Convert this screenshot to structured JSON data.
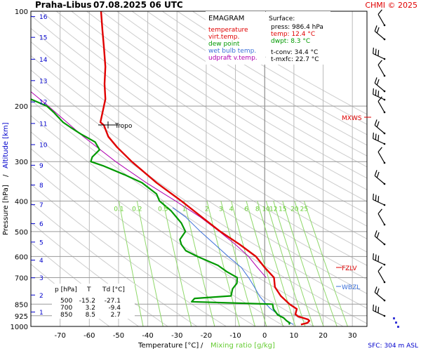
{
  "header": {
    "station": "Praha-Libus",
    "datetime": "07.08.2025 06 UTC",
    "credit": "CHMI © 2025"
  },
  "axes": {
    "xlabel": "Temperature [°C]",
    "xlabel_sep": "/",
    "xlabel2": "Mixing ratio [g/kg]",
    "ylabel": "Pressure [hPa]",
    "ylabel_sep": "/",
    "ylabel2": "Altitude [km]",
    "sfc_note": "SFC: 304 m ASL"
  },
  "legend": {
    "title": "EMAGRAM",
    "items": [
      {
        "label": "temperature",
        "color": "#e00000"
      },
      {
        "label": "virt.temp.",
        "color": "#e00000"
      },
      {
        "label": "dew point",
        "color": "#009900"
      },
      {
        "label": "wet bulb temp.",
        "color": "#3a6fd8"
      },
      {
        "label": "udpraft v.temp.",
        "color": "#b000b0"
      }
    ]
  },
  "surface": {
    "title": "Surface:",
    "lines": [
      {
        "text": "press: 986.4 hPa",
        "color": "#000000"
      },
      {
        "text": "temp: 12.4 °C",
        "color": "#e00000"
      },
      {
        "text": "dwpt: 8.3 °C",
        "color": "#009900"
      }
    ],
    "extra": [
      {
        "text": "t-conv: 34.4 °C"
      },
      {
        "text": "t-mxfc: 22.7 °C"
      }
    ]
  },
  "table": {
    "headers": [
      "p [hPa]",
      "T",
      "Td [°C]"
    ],
    "rows": [
      [
        "500",
        "-15.2",
        "-27.1"
      ],
      [
        "700",
        "3.2",
        "-9.4"
      ],
      [
        "850",
        "8.5",
        "2.7"
      ]
    ]
  },
  "markers": {
    "tropo": "Tropo",
    "mxws": "MXWS",
    "fzlv": "FZLV",
    "wbzl": "WBZL"
  },
  "colors": {
    "temperature": "#e00000",
    "dewpoint": "#009900",
    "wetbulb": "#3a6fd8",
    "parcel": "#b000b0",
    "mixing": "#8fd86a",
    "altitude": "#0000cc",
    "isobar": "#999999",
    "isotherm": "#bbbbbb",
    "dryadiabat": "#cccccc"
  },
  "chart_data": {
    "type": "line",
    "title": "Praha-Libus 07.08.2025 06 UTC",
    "xlabel": "Temperature [°C] / Mixing ratio [g/kg]",
    "ylabel": "Pressure [hPa] / Altitude [km]",
    "xlim": [
      -80,
      35
    ],
    "ylim": [
      1000,
      100
    ],
    "y_scale": "log",
    "x_ticks": [
      -70,
      -60,
      -50,
      -40,
      -30,
      -20,
      -10,
      0,
      10,
      20,
      30
    ],
    "y_ticks": [
      100,
      200,
      300,
      400,
      500,
      600,
      700,
      850,
      925,
      1000
    ],
    "altitude_km_ticks": [
      {
        "km": 1,
        "p": 900
      },
      {
        "km": 2,
        "p": 795
      },
      {
        "km": 3,
        "p": 701
      },
      {
        "km": 4,
        "p": 616
      },
      {
        "km": 5,
        "p": 540
      },
      {
        "km": 6,
        "p": 472
      },
      {
        "km": 7,
        "p": 411
      },
      {
        "km": 8,
        "p": 356
      },
      {
        "km": 9,
        "p": 308
      },
      {
        "km": 10,
        "p": 265
      },
      {
        "km": 11,
        "p": 227
      },
      {
        "km": 12,
        "p": 194
      },
      {
        "km": 13,
        "p": 166
      },
      {
        "km": 14,
        "p": 142
      },
      {
        "km": 15,
        "p": 121
      },
      {
        "km": 16,
        "p": 104
      }
    ],
    "mixing_ratio_labels": [
      "0.1",
      "0.2",
      "0.5",
      "1",
      "2",
      "3",
      "4",
      "6",
      "8",
      "10",
      "12",
      "15",
      "20",
      "25"
    ],
    "series": [
      {
        "name": "temperature",
        "points": [
          [
            986.4,
            12.4
          ],
          [
            975,
            14.6
          ],
          [
            960,
            15.3
          ],
          [
            950,
            14.8
          ],
          [
            930,
            11.5
          ],
          [
            915,
            10.5
          ],
          [
            880,
            11.0
          ],
          [
            850,
            8.5
          ],
          [
            800,
            5.5
          ],
          [
            750,
            3.5
          ],
          [
            700,
            3.2
          ],
          [
            650,
            0.0
          ],
          [
            600,
            -3.0
          ],
          [
            550,
            -8.5
          ],
          [
            500,
            -15.2
          ],
          [
            450,
            -21.5
          ],
          [
            400,
            -28.5
          ],
          [
            350,
            -37.0
          ],
          [
            300,
            -45.5
          ],
          [
            270,
            -50.5
          ],
          [
            250,
            -53.5
          ],
          [
            230,
            -55.0
          ],
          [
            225,
            -56.2
          ],
          [
            210,
            -55.5
          ],
          [
            190,
            -54.5
          ],
          [
            170,
            -54.8
          ],
          [
            150,
            -54.5
          ],
          [
            130,
            -55.0
          ],
          [
            115,
            -55.5
          ],
          [
            100,
            -56.0
          ]
        ]
      },
      {
        "name": "dew point",
        "points": [
          [
            986.4,
            8.3
          ],
          [
            975,
            8.6
          ],
          [
            960,
            7.5
          ],
          [
            940,
            6.5
          ],
          [
            920,
            4.5
          ],
          [
            880,
            3.0
          ],
          [
            850,
            2.7
          ],
          [
            835,
            -25.0
          ],
          [
            815,
            -24.0
          ],
          [
            800,
            -11.5
          ],
          [
            760,
            -11.0
          ],
          [
            730,
            -9.5
          ],
          [
            700,
            -9.4
          ],
          [
            670,
            -13.0
          ],
          [
            640,
            -16.0
          ],
          [
            600,
            -23.0
          ],
          [
            575,
            -27.0
          ],
          [
            550,
            -28.5
          ],
          [
            530,
            -29.0
          ],
          [
            500,
            -27.1
          ],
          [
            470,
            -28.5
          ],
          [
            430,
            -32.0
          ],
          [
            400,
            -36.0
          ],
          [
            380,
            -37.0
          ],
          [
            350,
            -42.0
          ],
          [
            330,
            -48.0
          ],
          [
            310,
            -55.0
          ],
          [
            300,
            -59.5
          ],
          [
            290,
            -59.0
          ],
          [
            275,
            -56.5
          ],
          [
            260,
            -58.0
          ],
          [
            245,
            -63.0
          ],
          [
            235,
            -66.0
          ],
          [
            225,
            -69.0
          ],
          [
            210,
            -72.0
          ],
          [
            200,
            -74.5
          ],
          [
            190,
            -80.0
          ]
        ]
      },
      {
        "name": "wet bulb temp.",
        "points": [
          [
            986.4,
            9.8
          ],
          [
            950,
            7.0
          ],
          [
            925,
            5.5
          ],
          [
            900,
            3.5
          ],
          [
            875,
            1.8
          ],
          [
            850,
            0.5
          ],
          [
            800,
            -1.8
          ],
          [
            750,
            -3.5
          ],
          [
            700,
            -5.5
          ],
          [
            650,
            -8.0
          ],
          [
            600,
            -12.5
          ],
          [
            550,
            -17.0
          ],
          [
            500,
            -22.0
          ],
          [
            450,
            -27.0
          ],
          [
            420,
            -31.5
          ]
        ]
      },
      {
        "name": "udpraft v.temp.",
        "points": [
          [
            700,
            0.5
          ],
          [
            650,
            -2.5
          ],
          [
            600,
            -5.5
          ],
          [
            550,
            -10.0
          ],
          [
            500,
            -15.5
          ],
          [
            450,
            -22.0
          ],
          [
            400,
            -30.5
          ],
          [
            350,
            -40.5
          ],
          [
            300,
            -51.0
          ],
          [
            250,
            -62.0
          ],
          [
            200,
            -74.0
          ],
          [
            180,
            -80.0
          ]
        ]
      }
    ]
  }
}
